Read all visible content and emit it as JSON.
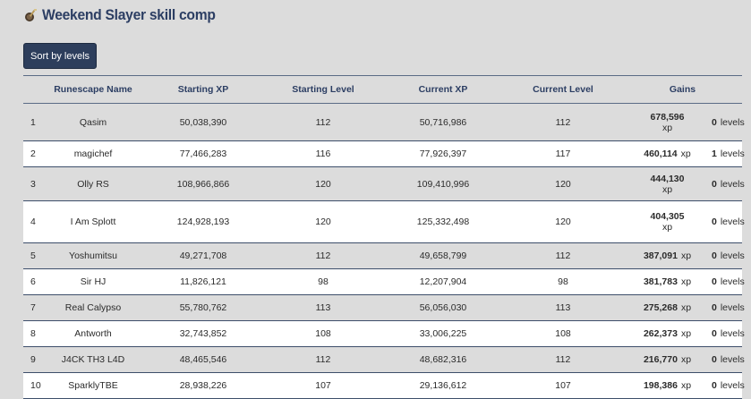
{
  "page": {
    "title": "Weekend Slayer skill comp",
    "sort_button": "Sort by levels"
  },
  "table": {
    "headers": [
      "Runescape Name",
      "Starting XP",
      "Starting Level",
      "Current XP",
      "Current Level",
      "Gains"
    ],
    "xp_unit": "xp",
    "level_unit_plural": "levels",
    "level_unit_singular": "levels",
    "rows": [
      {
        "rank": "1",
        "name": "Qasim",
        "start_xp": "50,038,390",
        "start_lvl": "112",
        "cur_xp": "50,716,986",
        "cur_lvl": "112",
        "gain_xp": "678,596",
        "gain_lvl": "0",
        "wrap": true
      },
      {
        "rank": "2",
        "name": "magichef",
        "start_xp": "77,466,283",
        "start_lvl": "116",
        "cur_xp": "77,926,397",
        "cur_lvl": "117",
        "gain_xp": "460,114",
        "gain_lvl": "1",
        "wrap": false
      },
      {
        "rank": "3",
        "name": "Olly RS",
        "start_xp": "108,966,866",
        "start_lvl": "120",
        "cur_xp": "109,410,996",
        "cur_lvl": "120",
        "gain_xp": "444,130",
        "gain_lvl": "0",
        "wrap": true
      },
      {
        "rank": "4",
        "name": "I Am Splott",
        "start_xp": "124,928,193",
        "start_lvl": "120",
        "cur_xp": "125,332,498",
        "cur_lvl": "120",
        "gain_xp": "404,305",
        "gain_lvl": "0",
        "wrap": true
      },
      {
        "rank": "5",
        "name": "Yoshumitsu",
        "start_xp": "49,271,708",
        "start_lvl": "112",
        "cur_xp": "49,658,799",
        "cur_lvl": "112",
        "gain_xp": "387,091",
        "gain_lvl": "0",
        "wrap": false
      },
      {
        "rank": "6",
        "name": "Sir HJ",
        "start_xp": "11,826,121",
        "start_lvl": "98",
        "cur_xp": "12,207,904",
        "cur_lvl": "98",
        "gain_xp": "381,783",
        "gain_lvl": "0",
        "wrap": false
      },
      {
        "rank": "7",
        "name": "Real Calypso",
        "start_xp": "55,780,762",
        "start_lvl": "113",
        "cur_xp": "56,056,030",
        "cur_lvl": "113",
        "gain_xp": "275,268",
        "gain_lvl": "0",
        "wrap": false
      },
      {
        "rank": "8",
        "name": "Antworth",
        "start_xp": "32,743,852",
        "start_lvl": "108",
        "cur_xp": "33,006,225",
        "cur_lvl": "108",
        "gain_xp": "262,373",
        "gain_lvl": "0",
        "wrap": false
      },
      {
        "rank": "9",
        "name": "J4CK TH3 L4D",
        "start_xp": "48,465,546",
        "start_lvl": "112",
        "cur_xp": "48,682,316",
        "cur_lvl": "112",
        "gain_xp": "216,770",
        "gain_lvl": "0",
        "wrap": false
      },
      {
        "rank": "10",
        "name": "SparklyTBE",
        "start_xp": "28,938,226",
        "start_lvl": "107",
        "cur_xp": "29,136,612",
        "cur_lvl": "107",
        "gain_xp": "198,386",
        "gain_lvl": "0",
        "wrap": false
      }
    ]
  }
}
